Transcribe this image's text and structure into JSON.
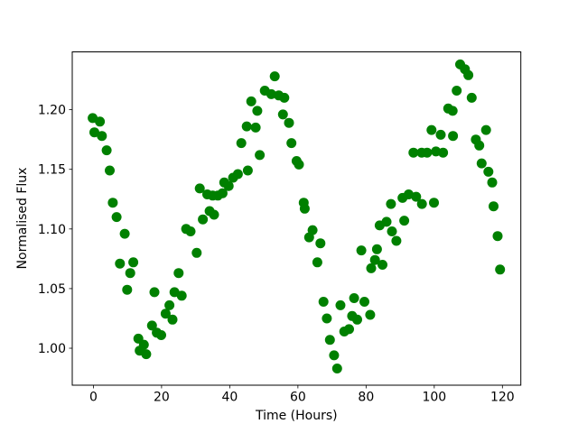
{
  "figure": {
    "background_color": "#ffffff",
    "border_color": "#000000"
  },
  "chart_data": {
    "type": "scatter",
    "title": "",
    "xlabel": "Time (Hours)",
    "ylabel": "Normalised Flux",
    "marker_color": "#008000",
    "marker_radius_px": 5.5,
    "grid": false,
    "legend": false,
    "xlim": [
      -6.2,
      125.4
    ],
    "ylim": [
      0.969,
      1.2485
    ],
    "x_ticks": [
      {
        "value": 0,
        "label": "0"
      },
      {
        "value": 20,
        "label": "20"
      },
      {
        "value": 40,
        "label": "40"
      },
      {
        "value": 60,
        "label": "60"
      },
      {
        "value": 80,
        "label": "80"
      },
      {
        "value": 100,
        "label": "100"
      },
      {
        "value": 120,
        "label": "120"
      }
    ],
    "y_ticks": [
      {
        "value": 1.0,
        "label": "1.00"
      },
      {
        "value": 1.05,
        "label": "1.05"
      },
      {
        "value": 1.1,
        "label": "1.10"
      },
      {
        "value": 1.15,
        "label": "1.15"
      },
      {
        "value": 1.2,
        "label": "1.20"
      }
    ],
    "points": [
      [
        -0.2,
        1.193
      ],
      [
        0.3,
        1.181
      ],
      [
        1.9,
        1.19
      ],
      [
        2.5,
        1.178
      ],
      [
        3.9,
        1.166
      ],
      [
        4.8,
        1.149
      ],
      [
        5.7,
        1.122
      ],
      [
        6.8,
        1.11
      ],
      [
        7.8,
        1.071
      ],
      [
        9.2,
        1.096
      ],
      [
        9.9,
        1.049
      ],
      [
        10.8,
        1.063
      ],
      [
        11.7,
        1.072
      ],
      [
        13.2,
        1.008
      ],
      [
        13.6,
        0.998
      ],
      [
        14.8,
        1.003
      ],
      [
        15.5,
        0.995
      ],
      [
        17.2,
        1.019
      ],
      [
        17.9,
        1.047
      ],
      [
        18.6,
        1.013
      ],
      [
        19.9,
        1.011
      ],
      [
        21.2,
        1.029
      ],
      [
        22.3,
        1.036
      ],
      [
        23.2,
        1.024
      ],
      [
        23.8,
        1.047
      ],
      [
        25.0,
        1.063
      ],
      [
        25.9,
        1.044
      ],
      [
        27.2,
        1.1
      ],
      [
        28.5,
        1.098
      ],
      [
        30.3,
        1.08
      ],
      [
        31.2,
        1.134
      ],
      [
        32.1,
        1.108
      ],
      [
        33.4,
        1.129
      ],
      [
        34.1,
        1.115
      ],
      [
        35.0,
        1.128
      ],
      [
        35.4,
        1.112
      ],
      [
        36.5,
        1.128
      ],
      [
        37.9,
        1.13
      ],
      [
        38.4,
        1.139
      ],
      [
        39.7,
        1.136
      ],
      [
        41.0,
        1.143
      ],
      [
        42.4,
        1.146
      ],
      [
        43.4,
        1.172
      ],
      [
        45.0,
        1.186
      ],
      [
        45.3,
        1.149
      ],
      [
        46.3,
        1.207
      ],
      [
        47.6,
        1.185
      ],
      [
        48.1,
        1.199
      ],
      [
        48.8,
        1.162
      ],
      [
        50.3,
        1.216
      ],
      [
        52.2,
        1.213
      ],
      [
        53.2,
        1.228
      ],
      [
        54.4,
        1.212
      ],
      [
        55.6,
        1.196
      ],
      [
        56.0,
        1.21
      ],
      [
        57.4,
        1.189
      ],
      [
        58.1,
        1.172
      ],
      [
        59.6,
        1.157
      ],
      [
        60.3,
        1.154
      ],
      [
        61.7,
        1.122
      ],
      [
        62.0,
        1.117
      ],
      [
        63.3,
        1.093
      ],
      [
        64.3,
        1.099
      ],
      [
        65.7,
        1.072
      ],
      [
        66.6,
        1.088
      ],
      [
        67.5,
        1.039
      ],
      [
        68.5,
        1.025
      ],
      [
        69.4,
        1.007
      ],
      [
        70.6,
        0.994
      ],
      [
        71.5,
        0.983
      ],
      [
        72.5,
        1.036
      ],
      [
        73.6,
        1.014
      ],
      [
        75.0,
        1.016
      ],
      [
        75.9,
        1.027
      ],
      [
        76.5,
        1.042
      ],
      [
        77.4,
        1.024
      ],
      [
        78.6,
        1.082
      ],
      [
        79.5,
        1.039
      ],
      [
        81.2,
        1.028
      ],
      [
        81.5,
        1.067
      ],
      [
        82.6,
        1.074
      ],
      [
        83.2,
        1.083
      ],
      [
        84.0,
        1.103
      ],
      [
        84.8,
        1.07
      ],
      [
        86.0,
        1.106
      ],
      [
        87.3,
        1.121
      ],
      [
        87.6,
        1.098
      ],
      [
        88.9,
        1.09
      ],
      [
        90.7,
        1.126
      ],
      [
        91.2,
        1.107
      ],
      [
        92.5,
        1.129
      ],
      [
        93.9,
        1.164
      ],
      [
        94.7,
        1.127
      ],
      [
        96.3,
        1.164
      ],
      [
        96.4,
        1.121
      ],
      [
        97.9,
        1.164
      ],
      [
        99.2,
        1.183
      ],
      [
        99.9,
        1.122
      ],
      [
        100.5,
        1.165
      ],
      [
        101.9,
        1.179
      ],
      [
        102.6,
        1.164
      ],
      [
        104.1,
        1.201
      ],
      [
        105.4,
        1.199
      ],
      [
        105.5,
        1.178
      ],
      [
        106.6,
        1.216
      ],
      [
        107.6,
        1.238
      ],
      [
        109.0,
        1.234
      ],
      [
        110.0,
        1.229
      ],
      [
        111.0,
        1.21
      ],
      [
        112.2,
        1.175
      ],
      [
        113.2,
        1.17
      ],
      [
        113.9,
        1.155
      ],
      [
        115.2,
        1.183
      ],
      [
        115.9,
        1.148
      ],
      [
        117.0,
        1.139
      ],
      [
        117.4,
        1.119
      ],
      [
        118.6,
        1.094
      ],
      [
        119.3,
        1.066
      ]
    ]
  }
}
